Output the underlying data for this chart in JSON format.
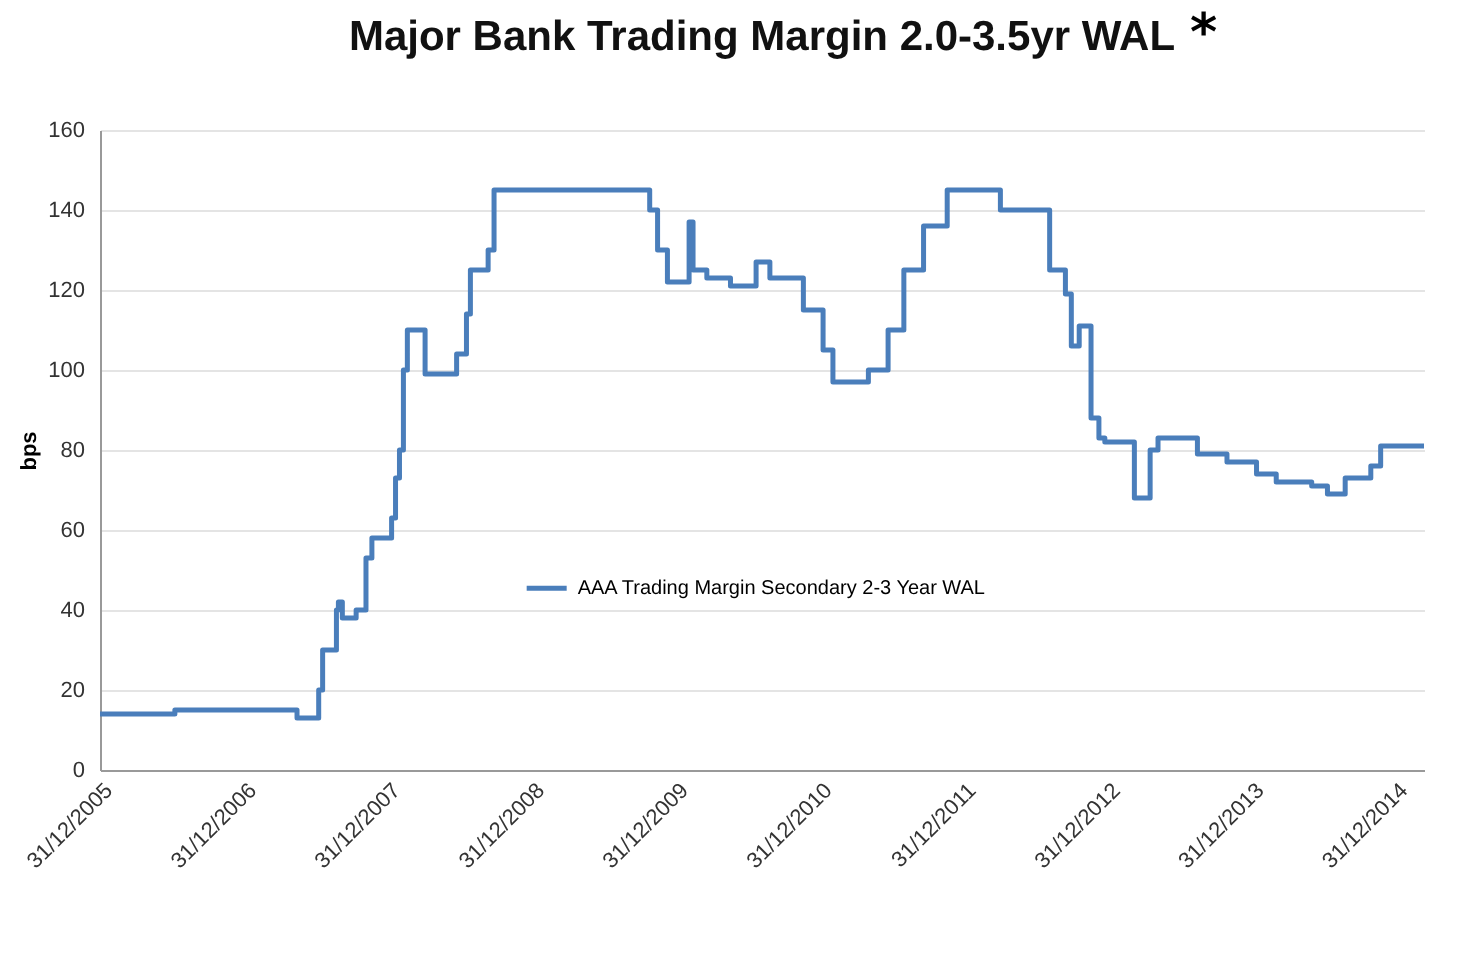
{
  "chart_data": {
    "type": "step",
    "title": "Major Bank Trading Margin 2.0-3.5yr WAL",
    "ylabel": "bps",
    "annotations": [
      "*"
    ],
    "x": [
      "2005-12-31",
      "2006-07-09",
      "2007-05-15",
      "2007-07-09",
      "2007-07-19",
      "2007-08-23",
      "2007-08-28",
      "2007-09-07",
      "2007-10-12",
      "2007-11-06",
      "2007-11-21",
      "2008-01-10",
      "2008-01-20",
      "2008-01-30",
      "2008-02-09",
      "2008-02-19",
      "2008-04-04",
      "2008-06-23",
      "2008-07-18",
      "2008-07-28",
      "2008-09-11",
      "2008-09-26",
      "2009-10-26",
      "2009-11-15",
      "2009-12-10",
      "2010-02-03",
      "2010-02-13",
      "2010-03-20",
      "2010-05-19",
      "2010-07-23",
      "2010-08-27",
      "2010-11-20",
      "2011-01-09",
      "2011-02-03",
      "2011-05-04",
      "2011-06-23",
      "2011-08-02",
      "2011-09-21",
      "2011-11-20",
      "2012-04-03",
      "2012-08-06",
      "2012-09-15",
      "2012-09-30",
      "2012-10-20",
      "2012-11-19",
      "2012-12-09",
      "2012-12-24",
      "2013-03-09",
      "2013-04-18",
      "2013-05-08",
      "2013-08-16",
      "2013-10-30",
      "2014-01-13",
      "2014-03-04",
      "2014-06-02",
      "2014-07-12",
      "2014-08-26",
      "2014-10-30",
      "2014-11-24",
      "2015-03-14"
    ],
    "series": [
      {
        "name": "AAA Trading Margin  Secondary 2-3 Year WAL",
        "color": "#4a7ebb",
        "values": [
          14,
          15,
          13,
          20,
          30,
          40,
          42,
          38,
          40,
          53,
          58,
          63,
          73,
          80,
          100,
          110,
          99,
          104,
          114,
          125,
          130,
          145,
          140,
          130,
          122,
          137,
          125,
          123,
          121,
          127,
          123,
          115,
          105,
          97,
          100,
          110,
          125,
          136,
          145,
          140,
          125,
          119,
          106,
          111,
          88,
          83,
          82,
          68,
          80,
          83,
          79,
          77,
          74,
          72,
          71,
          69,
          73,
          76,
          81,
          81
        ]
      }
    ],
    "xlim": [
      "2005-12-31",
      "2015-03-14"
    ],
    "xticks": [
      {
        "value": "2005-12-31",
        "label": "31/12/2005"
      },
      {
        "value": "2006-12-31",
        "label": "31/12/2006"
      },
      {
        "value": "2007-12-31",
        "label": "31/12/2007"
      },
      {
        "value": "2008-12-31",
        "label": "31/12/2008"
      },
      {
        "value": "2009-12-31",
        "label": "31/12/2009"
      },
      {
        "value": "2010-12-31",
        "label": "31/12/2010"
      },
      {
        "value": "2011-12-31",
        "label": "31/12/2011"
      },
      {
        "value": "2012-12-31",
        "label": "31/12/2012"
      },
      {
        "value": "2013-12-31",
        "label": "31/12/2013"
      },
      {
        "value": "2014-12-31",
        "label": "31/12/2014"
      }
    ],
    "ylim": [
      0,
      160
    ],
    "yticks": [
      0,
      20,
      40,
      60,
      80,
      100,
      120,
      140,
      160
    ],
    "grid": "y",
    "legend": "bottom",
    "marker": "none",
    "line_style": "solid"
  }
}
